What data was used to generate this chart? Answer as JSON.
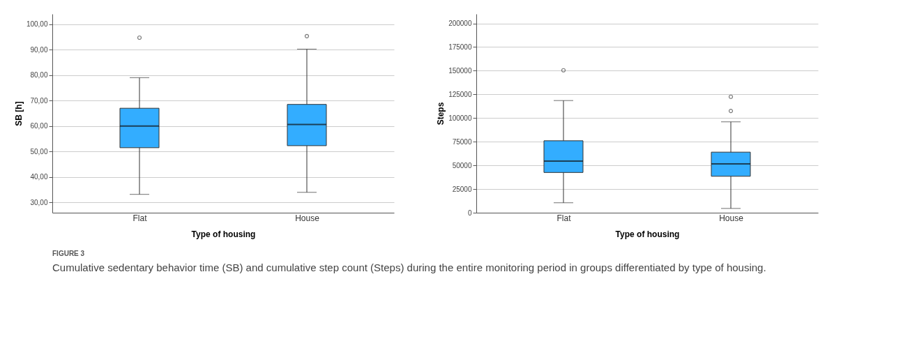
{
  "chart_data": [
    {
      "type": "box",
      "xlabel": "Type of housing",
      "ylabel": "SB [h]",
      "categories": [
        "Flat",
        "House"
      ],
      "color": "#33adff",
      "ylim": [
        26,
        104
      ],
      "grid": "y",
      "yticks": [
        {
          "value": 30,
          "label": "30,00"
        },
        {
          "value": 40,
          "label": "40,00"
        },
        {
          "value": 50,
          "label": "50,00"
        },
        {
          "value": 60,
          "label": "60,00"
        },
        {
          "value": 70,
          "label": "70,00"
        },
        {
          "value": 80,
          "label": "80,00"
        },
        {
          "value": 90,
          "label": "90,00"
        },
        {
          "value": 100,
          "label": "100,00"
        }
      ],
      "boxes": [
        {
          "low": 33.2,
          "q1": 51.5,
          "median": 60.0,
          "q3": 67.0,
          "high": 79.0,
          "outliers": [
            94.7
          ]
        },
        {
          "low": 34.0,
          "q1": 52.3,
          "median": 60.6,
          "q3": 68.5,
          "high": 90.2,
          "outliers": [
            95.3
          ]
        }
      ]
    },
    {
      "type": "box",
      "xlabel": "Type of housing",
      "ylabel": "Steps",
      "categories": [
        "Flat",
        "House"
      ],
      "color": "#33adff",
      "ylim": [
        0,
        210000
      ],
      "grid": "y",
      "yticks": [
        0,
        25000,
        50000,
        75000,
        100000,
        125000,
        150000,
        175000,
        200000
      ],
      "boxes": [
        {
          "low": 10500,
          "q1": 42500,
          "median": 54500,
          "q3": 76000,
          "high": 118500,
          "outliers": [
            150500
          ]
        },
        {
          "low": 4500,
          "q1": 38500,
          "median": 51500,
          "q3": 64000,
          "high": 96000,
          "outliers": [
            107500,
            122500
          ]
        }
      ],
      "annotations": [
        "FIGURE 3",
        "Cumulative sedentary behavior time (SB) and cumulative step count (Steps) during the entire monitoring period in groups differentiated by type of housing."
      ]
    }
  ]
}
